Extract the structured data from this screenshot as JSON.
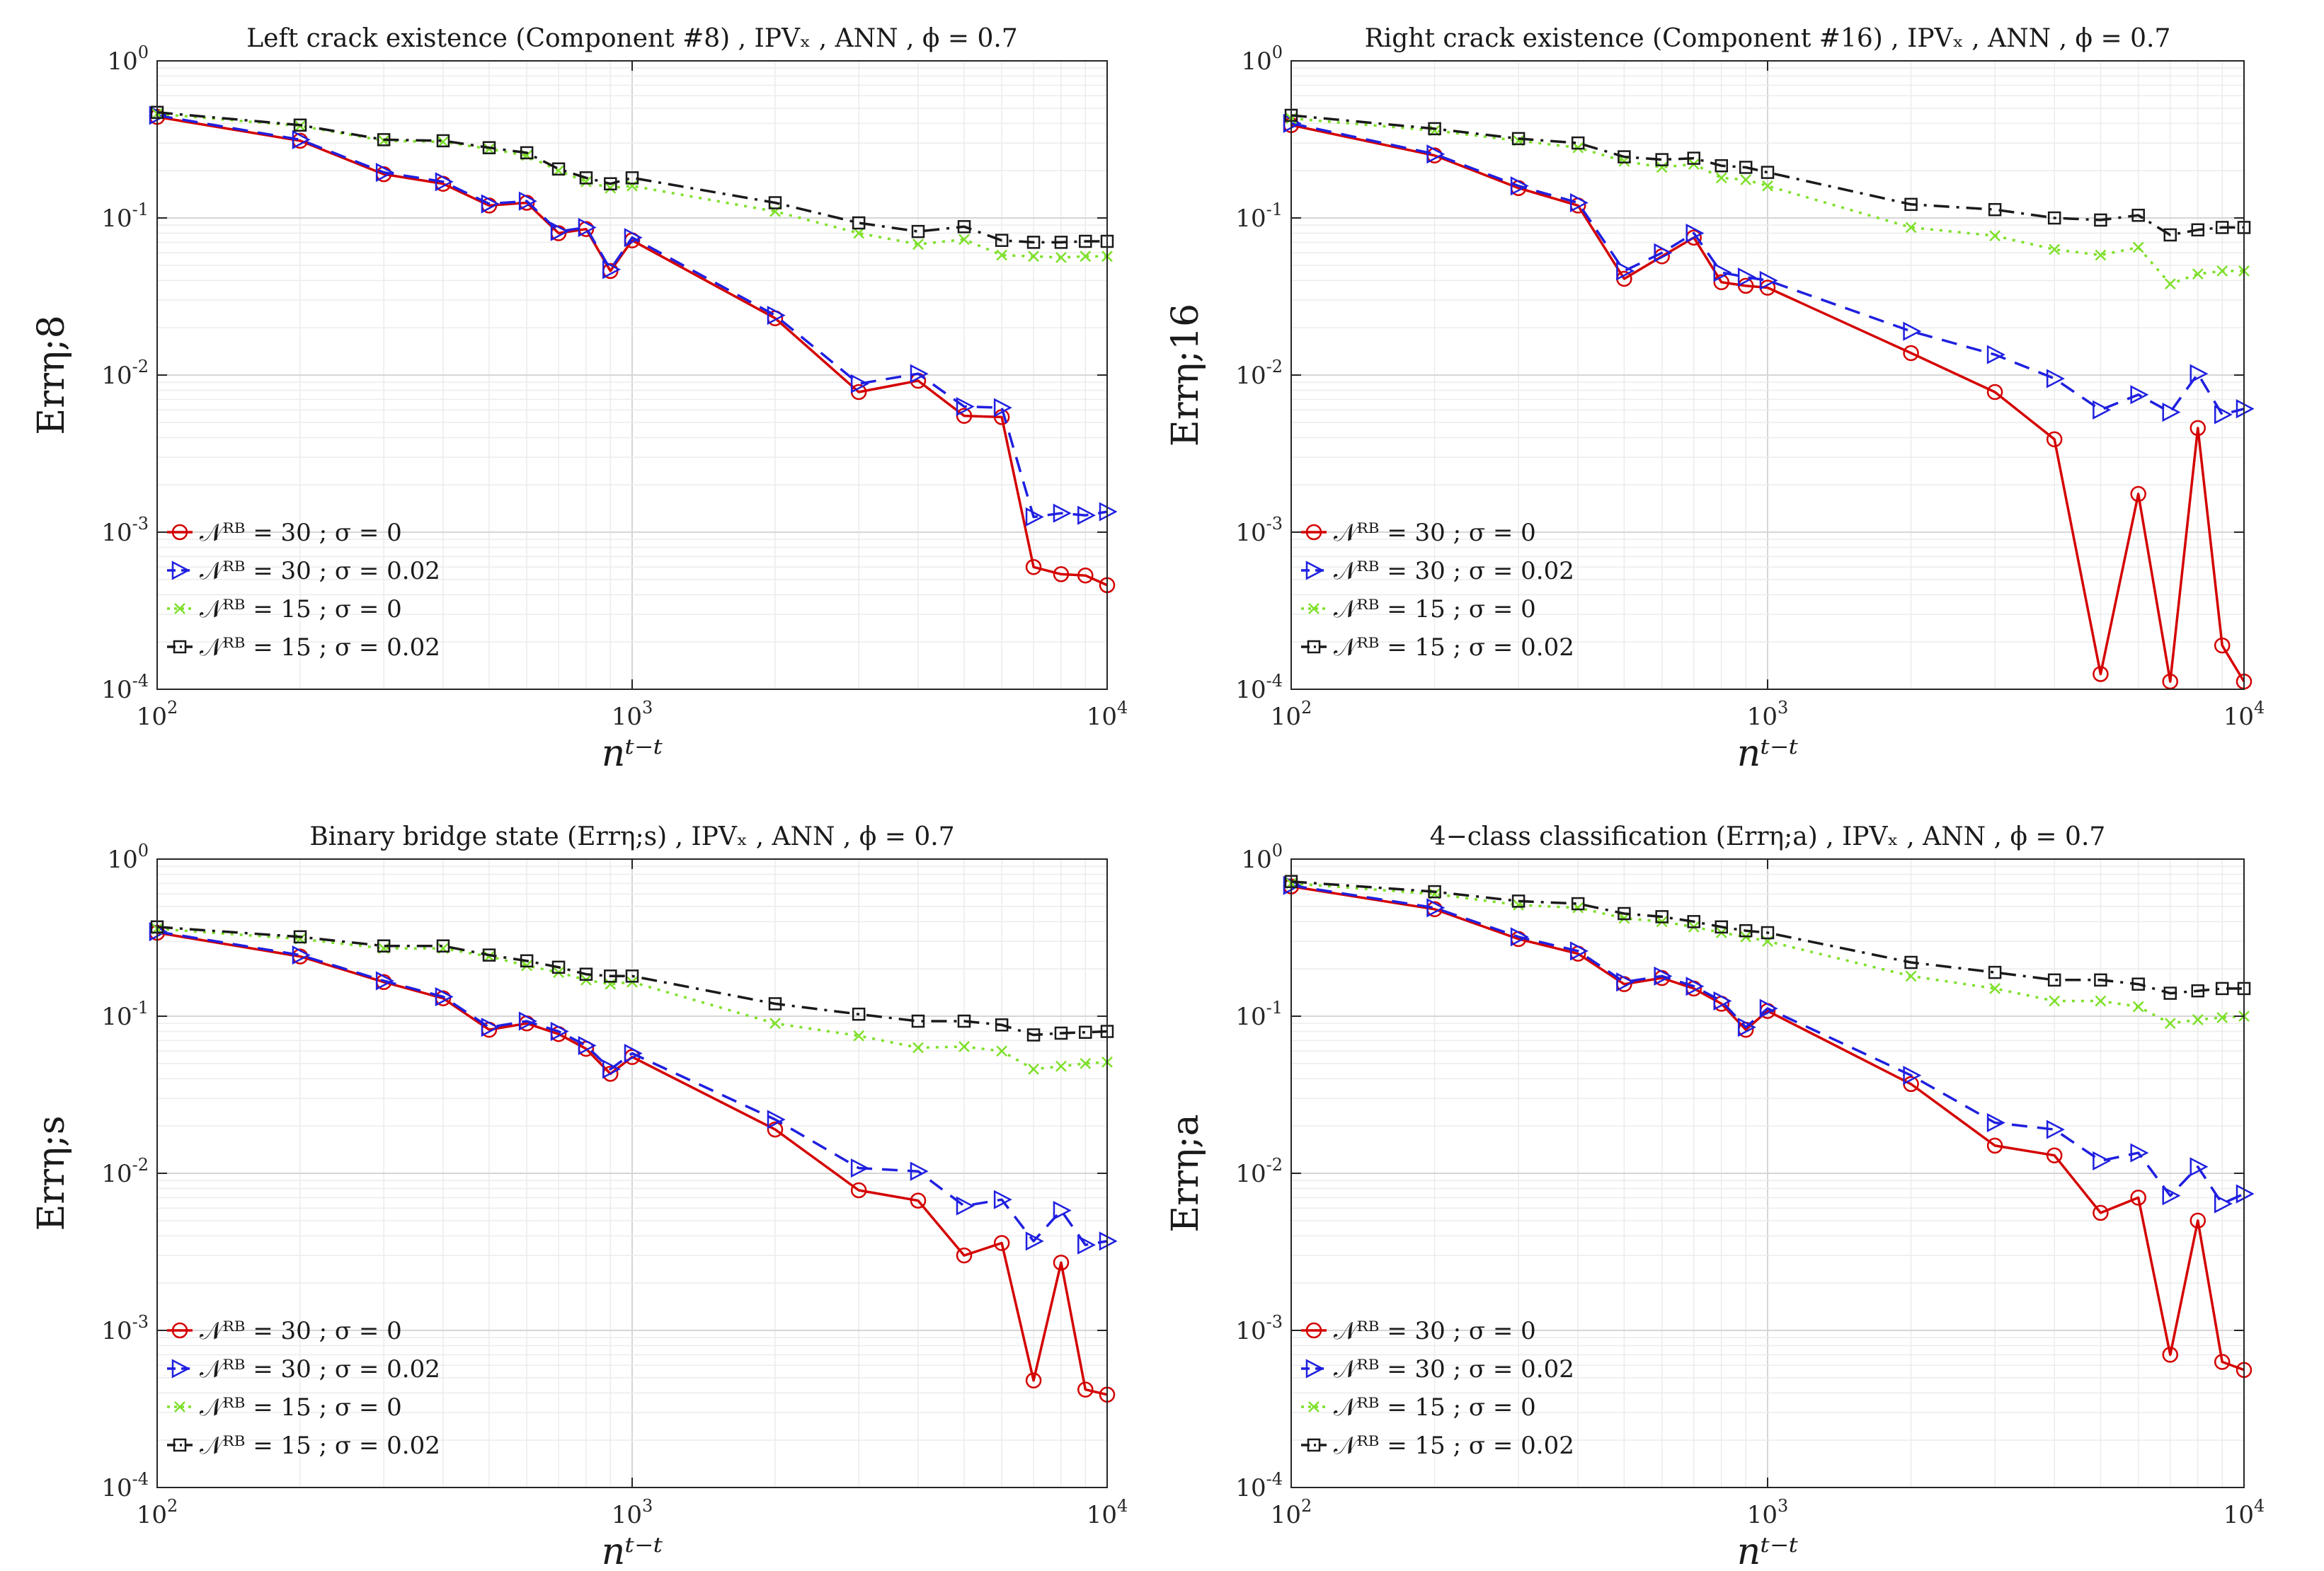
{
  "chart_data": [
    {
      "type": "line",
      "title": "Left crack existence (Component #8) , IPVₓ , ANN , ϕ = 0.7",
      "xlabel": "nᵗ⁻ᵗ",
      "ylabel": "Errη;8",
      "xscale": "log",
      "yscale": "log",
      "xlim": [
        100,
        10000
      ],
      "ylim": [
        0.0001,
        1
      ],
      "grid": true,
      "legend_position": "bottom-left",
      "x": [
        100,
        200,
        300,
        400,
        500,
        600,
        700,
        800,
        900,
        1000,
        2000,
        3000,
        4000,
        5000,
        6000,
        7000,
        8000,
        9000,
        10000
      ],
      "series": [
        {
          "name": "𝒩ᴿᴮ = 30 ; σ = 0",
          "color": "#d40000",
          "marker": "circle",
          "dash": "solid",
          "values": [
            0.44,
            0.31,
            0.19,
            0.165,
            0.12,
            0.125,
            0.08,
            0.085,
            0.046,
            0.072,
            0.023,
            0.0078,
            0.0092,
            0.0055,
            0.0054,
            0.0006,
            0.00054,
            0.00053,
            0.00046
          ]
        },
        {
          "name": "𝒩ᴿᴮ = 30 ; σ = 0.02",
          "color": "#1f1fe0",
          "marker": "triangle-right",
          "dash": "dashed",
          "values": [
            0.45,
            0.315,
            0.195,
            0.17,
            0.123,
            0.128,
            0.082,
            0.087,
            0.047,
            0.075,
            0.024,
            0.0088,
            0.0102,
            0.0063,
            0.0062,
            0.00125,
            0.00132,
            0.00128,
            0.00135
          ]
        },
        {
          "name": "𝒩ᴿᴮ = 15 ; σ = 0",
          "color": "#7ee02a",
          "marker": "x",
          "dash": "dotted",
          "values": [
            0.46,
            0.385,
            0.31,
            0.305,
            0.275,
            0.25,
            0.2,
            0.17,
            0.155,
            0.16,
            0.11,
            0.08,
            0.068,
            0.073,
            0.058,
            0.057,
            0.056,
            0.057,
            0.057
          ]
        },
        {
          "name": "𝒩ᴿᴮ = 15 ; σ = 0.02",
          "color": "#1a1a1a",
          "marker": "square",
          "dash": "dashdot",
          "values": [
            0.47,
            0.39,
            0.315,
            0.31,
            0.28,
            0.26,
            0.205,
            0.18,
            0.165,
            0.18,
            0.125,
            0.093,
            0.082,
            0.088,
            0.072,
            0.07,
            0.07,
            0.071,
            0.071
          ]
        }
      ]
    },
    {
      "type": "line",
      "title": "Right crack existence (Component #16) , IPVₓ , ANN , ϕ = 0.7",
      "xlabel": "nᵗ⁻ᵗ",
      "ylabel": "Errη;16",
      "xscale": "log",
      "yscale": "log",
      "xlim": [
        100,
        10000
      ],
      "ylim": [
        0.0001,
        1
      ],
      "grid": true,
      "legend_position": "bottom-left",
      "x": [
        100,
        200,
        300,
        400,
        500,
        600,
        700,
        800,
        900,
        1000,
        2000,
        3000,
        4000,
        5000,
        6000,
        7000,
        8000,
        9000,
        10000
      ],
      "series": [
        {
          "name": "𝒩ᴿᴮ = 30 ; σ = 0",
          "color": "#d40000",
          "marker": "circle",
          "dash": "solid",
          "values": [
            0.39,
            0.25,
            0.155,
            0.12,
            0.041,
            0.057,
            0.075,
            0.039,
            0.037,
            0.036,
            0.0138,
            0.0078,
            0.0039,
            0.000125,
            0.00175,
            0.000112,
            0.0046,
            0.00019,
            0.000112
          ]
        },
        {
          "name": "𝒩ᴿᴮ = 30 ; σ = 0.02",
          "color": "#1f1fe0",
          "marker": "triangle-right",
          "dash": "dashed",
          "values": [
            0.4,
            0.255,
            0.16,
            0.125,
            0.046,
            0.06,
            0.08,
            0.045,
            0.042,
            0.04,
            0.019,
            0.0135,
            0.0095,
            0.006,
            0.0075,
            0.0058,
            0.0102,
            0.0056,
            0.0061
          ]
        },
        {
          "name": "𝒩ᴿᴮ = 15 ; σ = 0",
          "color": "#7ee02a",
          "marker": "x",
          "dash": "dotted",
          "values": [
            0.43,
            0.36,
            0.31,
            0.28,
            0.23,
            0.21,
            0.22,
            0.18,
            0.175,
            0.16,
            0.087,
            0.077,
            0.063,
            0.058,
            0.065,
            0.038,
            0.044,
            0.046,
            0.046
          ]
        },
        {
          "name": "𝒩ᴿᴮ = 15 ; σ = 0.02",
          "color": "#1a1a1a",
          "marker": "square",
          "dash": "dashdot",
          "values": [
            0.45,
            0.37,
            0.32,
            0.3,
            0.245,
            0.235,
            0.24,
            0.215,
            0.21,
            0.195,
            0.122,
            0.113,
            0.1,
            0.097,
            0.104,
            0.078,
            0.084,
            0.087,
            0.087
          ]
        }
      ]
    },
    {
      "type": "line",
      "title": "Binary bridge state (Errη;s) , IPVₓ , ANN , ϕ = 0.7",
      "xlabel": "nᵗ⁻ᵗ",
      "ylabel": "Errη;s",
      "xscale": "log",
      "yscale": "log",
      "xlim": [
        100,
        10000
      ],
      "ylim": [
        0.0001,
        1
      ],
      "grid": true,
      "legend_position": "bottom-left",
      "x": [
        100,
        200,
        300,
        400,
        500,
        600,
        700,
        800,
        900,
        1000,
        2000,
        3000,
        4000,
        5000,
        6000,
        7000,
        8000,
        9000,
        10000
      ],
      "series": [
        {
          "name": "𝒩ᴿᴮ = 30 ; σ = 0",
          "color": "#d40000",
          "marker": "circle",
          "dash": "solid",
          "values": [
            0.34,
            0.24,
            0.165,
            0.13,
            0.082,
            0.09,
            0.077,
            0.062,
            0.043,
            0.055,
            0.019,
            0.0078,
            0.0067,
            0.003,
            0.0036,
            0.00048,
            0.0027,
            0.00042,
            0.00039
          ]
        },
        {
          "name": "𝒩ᴿᴮ = 30 ; σ = 0.02",
          "color": "#1f1fe0",
          "marker": "triangle-right",
          "dash": "dashed",
          "values": [
            0.345,
            0.245,
            0.168,
            0.133,
            0.085,
            0.093,
            0.08,
            0.065,
            0.046,
            0.058,
            0.022,
            0.0108,
            0.0103,
            0.0062,
            0.0068,
            0.0037,
            0.0058,
            0.0035,
            0.0037
          ]
        },
        {
          "name": "𝒩ᴿᴮ = 15 ; σ = 0",
          "color": "#7ee02a",
          "marker": "x",
          "dash": "dotted",
          "values": [
            0.36,
            0.31,
            0.27,
            0.27,
            0.24,
            0.21,
            0.19,
            0.17,
            0.16,
            0.165,
            0.09,
            0.075,
            0.063,
            0.064,
            0.06,
            0.046,
            0.048,
            0.05,
            0.051
          ]
        },
        {
          "name": "𝒩ᴿᴮ = 15 ; σ = 0.02",
          "color": "#1a1a1a",
          "marker": "square",
          "dash": "dashdot",
          "values": [
            0.37,
            0.32,
            0.28,
            0.28,
            0.245,
            0.225,
            0.205,
            0.185,
            0.18,
            0.18,
            0.12,
            0.103,
            0.093,
            0.093,
            0.088,
            0.076,
            0.078,
            0.079,
            0.08
          ]
        }
      ]
    },
    {
      "type": "line",
      "title": "4−class classification (Errη;a) , IPVₓ , ANN , ϕ = 0.7",
      "xlabel": "nᵗ⁻ᵗ",
      "ylabel": "Errη;a",
      "xscale": "log",
      "yscale": "log",
      "xlim": [
        100,
        10000
      ],
      "ylim": [
        0.0001,
        1
      ],
      "grid": true,
      "legend_position": "bottom-left",
      "x": [
        100,
        200,
        300,
        400,
        500,
        600,
        700,
        800,
        900,
        1000,
        2000,
        3000,
        4000,
        5000,
        6000,
        7000,
        8000,
        9000,
        10000
      ],
      "series": [
        {
          "name": "𝒩ᴿᴮ = 30 ; σ = 0",
          "color": "#d40000",
          "marker": "circle",
          "dash": "solid",
          "values": [
            0.67,
            0.48,
            0.31,
            0.25,
            0.16,
            0.175,
            0.15,
            0.12,
            0.082,
            0.108,
            0.037,
            0.015,
            0.013,
            0.0056,
            0.007,
            0.0007,
            0.005,
            0.00063,
            0.00056
          ]
        },
        {
          "name": "𝒩ᴿᴮ = 30 ; σ = 0.02",
          "color": "#1f1fe0",
          "marker": "triangle-right",
          "dash": "dashed",
          "values": [
            0.68,
            0.49,
            0.32,
            0.26,
            0.165,
            0.18,
            0.155,
            0.125,
            0.085,
            0.112,
            0.042,
            0.021,
            0.019,
            0.012,
            0.0135,
            0.0072,
            0.011,
            0.0064,
            0.0074
          ]
        },
        {
          "name": "𝒩ᴿᴮ = 15 ; σ = 0",
          "color": "#7ee02a",
          "marker": "x",
          "dash": "dotted",
          "values": [
            0.7,
            0.6,
            0.51,
            0.49,
            0.42,
            0.4,
            0.37,
            0.34,
            0.32,
            0.3,
            0.18,
            0.15,
            0.125,
            0.125,
            0.115,
            0.09,
            0.095,
            0.098,
            0.1
          ]
        },
        {
          "name": "𝒩ᴿᴮ = 15 ; σ = 0.02",
          "color": "#1a1a1a",
          "marker": "square",
          "dash": "dashdot",
          "values": [
            0.72,
            0.62,
            0.54,
            0.52,
            0.45,
            0.43,
            0.4,
            0.37,
            0.35,
            0.34,
            0.22,
            0.19,
            0.17,
            0.17,
            0.16,
            0.14,
            0.145,
            0.15,
            0.15
          ]
        }
      ]
    }
  ]
}
